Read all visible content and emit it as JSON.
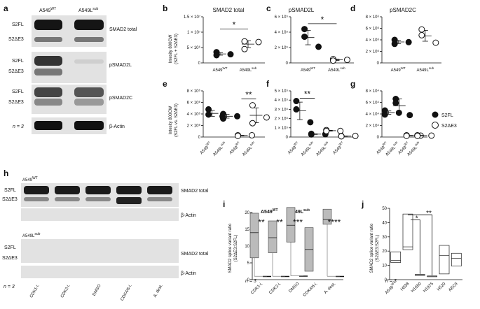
{
  "panels": {
    "a": {
      "letter": "a",
      "col_headers": [
        "A549",
        "A549L"
      ],
      "col_sups": [
        "WT",
        "sub"
      ],
      "rows": [
        {
          "left": [
            "S2FL",
            "S2ΔE3"
          ],
          "right": "SMAD2 total"
        },
        {
          "left": [
            "S2FL",
            "S2ΔE3"
          ],
          "right": "pSMAD2L"
        },
        {
          "left": [
            "S2FL",
            "S2ΔE3"
          ],
          "right": "pSMAD2C"
        },
        {
          "left": [
            "n = 3"
          ],
          "right": "β-Actin"
        }
      ]
    },
    "b": {
      "letter": "b",
      "title": "SMAD2 total",
      "ylabel": [
        "Intesity 800CW",
        "(S2FL + S2ΔE3)"
      ],
      "yticks": [
        "0",
        "5 × 10⁶",
        "1 × 10⁷",
        "1.5 × 10⁷"
      ],
      "xticks": [
        "A549",
        "A549L"
      ],
      "xsups": [
        "WT",
        "sub"
      ],
      "sig": "*"
    },
    "c": {
      "letter": "c",
      "title": "pSMAD2L",
      "yticks": [
        "0",
        "2 × 10⁵",
        "4 × 10⁵",
        "6 × 10⁵"
      ],
      "xticks": [
        "A549",
        "A549L"
      ],
      "xsups": [
        "WT",
        "sub"
      ],
      "sig": "*"
    },
    "d": {
      "letter": "d",
      "title": "pSMAD2C",
      "yticks": [
        "0",
        "2 × 10⁶",
        "4 × 10⁶",
        "6 × 10⁶",
        "8 × 10⁶"
      ],
      "xticks": [
        "A549",
        "A549L"
      ],
      "xsups": [
        "WT",
        "sub"
      ]
    },
    "e": {
      "letter": "e",
      "ylabel": [
        "Intesity 800CW",
        "(S2FL vs. S2ΔE3)"
      ],
      "yticks": [
        "0",
        "2 × 10⁶",
        "4 × 10⁶",
        "6 × 10⁶",
        "8 × 10⁶"
      ],
      "xticks": [
        "A549",
        "A549L",
        "A549",
        "A549L"
      ],
      "xsups": [
        "WT",
        "sub",
        "WT",
        "sub"
      ],
      "sig": "**"
    },
    "f": {
      "letter": "f",
      "yticks": [
        "0",
        "1 × 10⁵",
        "2 × 10⁵",
        "3 × 10⁵",
        "4 × 10⁵",
        "5 × 10⁵"
      ],
      "xticks": [
        "A549",
        "A549L",
        "A549L",
        "A549"
      ],
      "xsups": [
        "WT",
        "sub",
        "sub",
        "WT"
      ],
      "sig": "**"
    },
    "g": {
      "letter": "g",
      "yticks": [
        "0",
        "2 × 10⁴",
        "4 × 10⁴",
        "6 × 10⁴",
        "8 × 10⁴"
      ],
      "xticks": [
        "A549",
        "A549L",
        "A549",
        "A549L"
      ],
      "xsups": [
        "WT",
        "sub",
        "WT",
        "sub"
      ],
      "legend": [
        "S2FL",
        "S2ΔE3"
      ]
    },
    "h": {
      "letter": "h",
      "block1_title": "A549",
      "block1_sup": "WT",
      "block2_title": "A549L",
      "block2_sup": "sub",
      "row_labels_1": [
        "S2FL",
        "S2ΔE3"
      ],
      "right_1": [
        "SMAD2 total",
        "β-Actin"
      ],
      "row_labels_2": [
        "S2FL",
        "S2ΔE3"
      ],
      "right_2": [
        "SMAD2 total",
        "β-Actin"
      ],
      "n_label": "n = 3",
      "lanes": [
        "CDK1-i.",
        "CDK2-i.",
        "DMSO",
        "CDK4/6-i.",
        "A. dest."
      ]
    },
    "i": {
      "letter": "i",
      "ylabel": [
        "SMAD2 splice variant ratio",
        "(S2ΔE3:S2FL)"
      ],
      "yticks": [
        "0",
        "5",
        "10",
        "15",
        "20"
      ],
      "legend_wt": "A549",
      "legend_wt_sup": "WT",
      "legend_sub": "A549L",
      "legend_sub_sup": "sub",
      "sigs": [
        "**",
        "**",
        "***",
        "****"
      ],
      "n_label": "n = 3",
      "categories": [
        "CDK1-i.",
        "CDK2-i.",
        "DMSO",
        "CDK4/6-i.",
        "A. dest."
      ]
    },
    "j": {
      "letter": "j",
      "ylabel": [
        "SMAD2 splice variant ratio",
        "(S2ΔE3:S2FL)"
      ],
      "yticks": [
        "0",
        "10",
        "20",
        "30",
        "40",
        "50"
      ],
      "sigs": [
        "*",
        "**"
      ],
      "n_label": "n = 3",
      "categories": [
        "A549",
        "H838",
        "H1650",
        "H1975",
        "H520",
        "AECII"
      ],
      "cat_sup0": "WT"
    }
  },
  "chart_data": [
    {
      "type": "scatter",
      "panel": "b",
      "title": "SMAD2 total",
      "categories": [
        "A549WT",
        "A549Lsub"
      ],
      "series": [
        {
          "values": [
            [
              3500000.0,
              2500000.0,
              2800000.0
            ],
            [
              4500000.0,
              7000000.0,
              6800000.0
            ]
          ]
        }
      ],
      "means": [
        3000000.0,
        6300000.0
      ],
      "ylim": [
        0,
        15000000.0
      ]
    },
    {
      "type": "scatter",
      "panel": "c",
      "title": "pSMAD2L",
      "categories": [
        "A549WT",
        "A549Lsub"
      ],
      "series": [
        {
          "values": [
            [
              440000.0,
              340000.0,
              210000.0
            ],
            [
              50000.0,
              30000.0,
              40000.0
            ]
          ]
        }
      ],
      "means": [
        340000.0,
        40000.0
      ],
      "ylim": [
        0,
        600000.0
      ]
    },
    {
      "type": "scatter",
      "panel": "d",
      "title": "pSMAD2C",
      "categories": [
        "A549WT",
        "A549Lsub"
      ],
      "series": [
        {
          "values": [
            [
              4000000.0,
              3300000.0,
              3600000.0
            ],
            [
              5800000.0,
              4800000.0,
              3500000.0
            ]
          ]
        }
      ],
      "means": [
        3800000.0,
        4800000.0
      ],
      "ylim": [
        0,
        8000000.0
      ]
    },
    {
      "type": "scatter",
      "panel": "e",
      "categories": [
        "A549WT S2FL",
        "A549Lsub S2FL",
        "A549WT S2ΔE3",
        "A549Lsub S2ΔE3"
      ],
      "series": [
        {
          "values": [
            [
              4800000.0,
              3900000.0,
              3600000.0
            ],
            [
              4000000.0,
              3200000.0,
              3600000.0
            ],
            [
              300000.0,
              200000.0,
              300000.0
            ],
            [
              5500000.0,
              2400000.0,
              3400000.0
            ]
          ]
        }
      ],
      "ylim": [
        0,
        8000000.0
      ]
    },
    {
      "type": "scatter",
      "panel": "f",
      "categories": [
        "A549WT S2FL",
        "A549Lsub S2FL",
        "A549Lsub S2ΔE3",
        "A549WT S2ΔE3"
      ],
      "series": [
        {
          "values": [
            [
              390000.0,
              300000.0,
              160000.0
            ],
            [
              35000.0,
              28000.0,
              30000.0
            ],
            [
              75000.0,
              65000.0,
              66000.0
            ],
            [
              10000.0,
              8000.0,
              12000.0
            ]
          ]
        }
      ],
      "ylim": [
        0,
        500000.0
      ]
    },
    {
      "type": "scatter",
      "panel": "g",
      "categories": [
        "A549WT S2FL",
        "A549Lsub S2FL",
        "A549WT S2ΔE3",
        "A549Lsub S2ΔE3"
      ],
      "series": [
        {
          "values": [
            [
              46000.0,
              39000.0,
              42000.0
            ],
            [
              66000.0,
              59000.0,
              38000.0
            ],
            [
              3000.0,
              2000.0,
              2500.0
            ],
            [
              3000.0,
              2000.0,
              2500.0
            ]
          ]
        }
      ],
      "ylim": [
        0,
        80000.0
      ]
    },
    {
      "type": "box",
      "panel": "i",
      "categories": [
        "CDK1-i.",
        "CDK2-i.",
        "DMSO",
        "CDK4/6-i.",
        "A. dest."
      ],
      "series": [
        {
          "name": "A549WT",
          "boxes": [
            [
              6.5,
              14,
              19.8
            ],
            [
              8,
              12.5,
              17.5
            ],
            [
              11.2,
              16.2,
              21.5
            ],
            [
              2.5,
              9,
              15.5
            ],
            [
              16.5,
              18,
              21
            ]
          ]
        },
        {
          "name": "A549Lsub",
          "boxes": [
            [
              0.9,
              1.0,
              1.1
            ],
            [
              0.9,
              1.0,
              1.1
            ],
            [
              0.9,
              1.1,
              1.2
            ],
            null,
            [
              0.9,
              1.0,
              1.1
            ]
          ]
        }
      ],
      "ylim": [
        0,
        20
      ]
    },
    {
      "type": "box",
      "panel": "j",
      "categories": [
        "A549WT",
        "H838",
        "H1650",
        "H1975",
        "H520",
        "AECII"
      ],
      "series": [
        {
          "boxes": [
            [
              12,
              13.5,
              19.5
            ],
            [
              21,
              23,
              46
            ],
            [
              3.2,
              3.4,
              3.6
            ],
            [
              2.4,
              2.5,
              2.6
            ],
            [
              4,
              17,
              24
            ],
            [
              9.5,
              15,
              18.5
            ]
          ]
        }
      ],
      "ylim": [
        0,
        50
      ]
    }
  ]
}
